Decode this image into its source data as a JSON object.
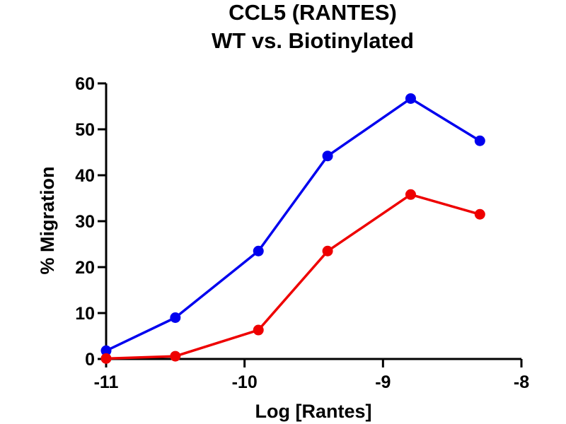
{
  "chart_data": {
    "type": "line",
    "title": "CCL5 (RANTES)",
    "subtitle": "WT vs. Biotinylated",
    "xlabel": "Log [Rantes]",
    "ylabel": "% Migration",
    "xlim": [
      -11,
      -8
    ],
    "ylim": [
      0,
      60
    ],
    "xticks": [
      -11,
      -10,
      -9,
      -8
    ],
    "xtick_labels": [
      "-11",
      "-10",
      "-9",
      "-8"
    ],
    "yticks": [
      0,
      10,
      20,
      30,
      40,
      50,
      60
    ],
    "ytick_labels": [
      "0",
      "10",
      "20",
      "30",
      "40",
      "50",
      "60"
    ],
    "grid": false,
    "legend": "none",
    "series": [
      {
        "color": "#0000ee",
        "x": [
          -11,
          -10.5,
          -9.9,
          -9.4,
          -8.8,
          -8.3
        ],
        "y": [
          1.8,
          9.0,
          23.5,
          44.2,
          56.7,
          47.5
        ]
      },
      {
        "color": "#ee0000",
        "x": [
          -11,
          -10.5,
          -9.9,
          -9.4,
          -8.8,
          -8.3
        ],
        "y": [
          0.1,
          0.6,
          6.3,
          23.5,
          35.8,
          31.5
        ]
      }
    ]
  }
}
